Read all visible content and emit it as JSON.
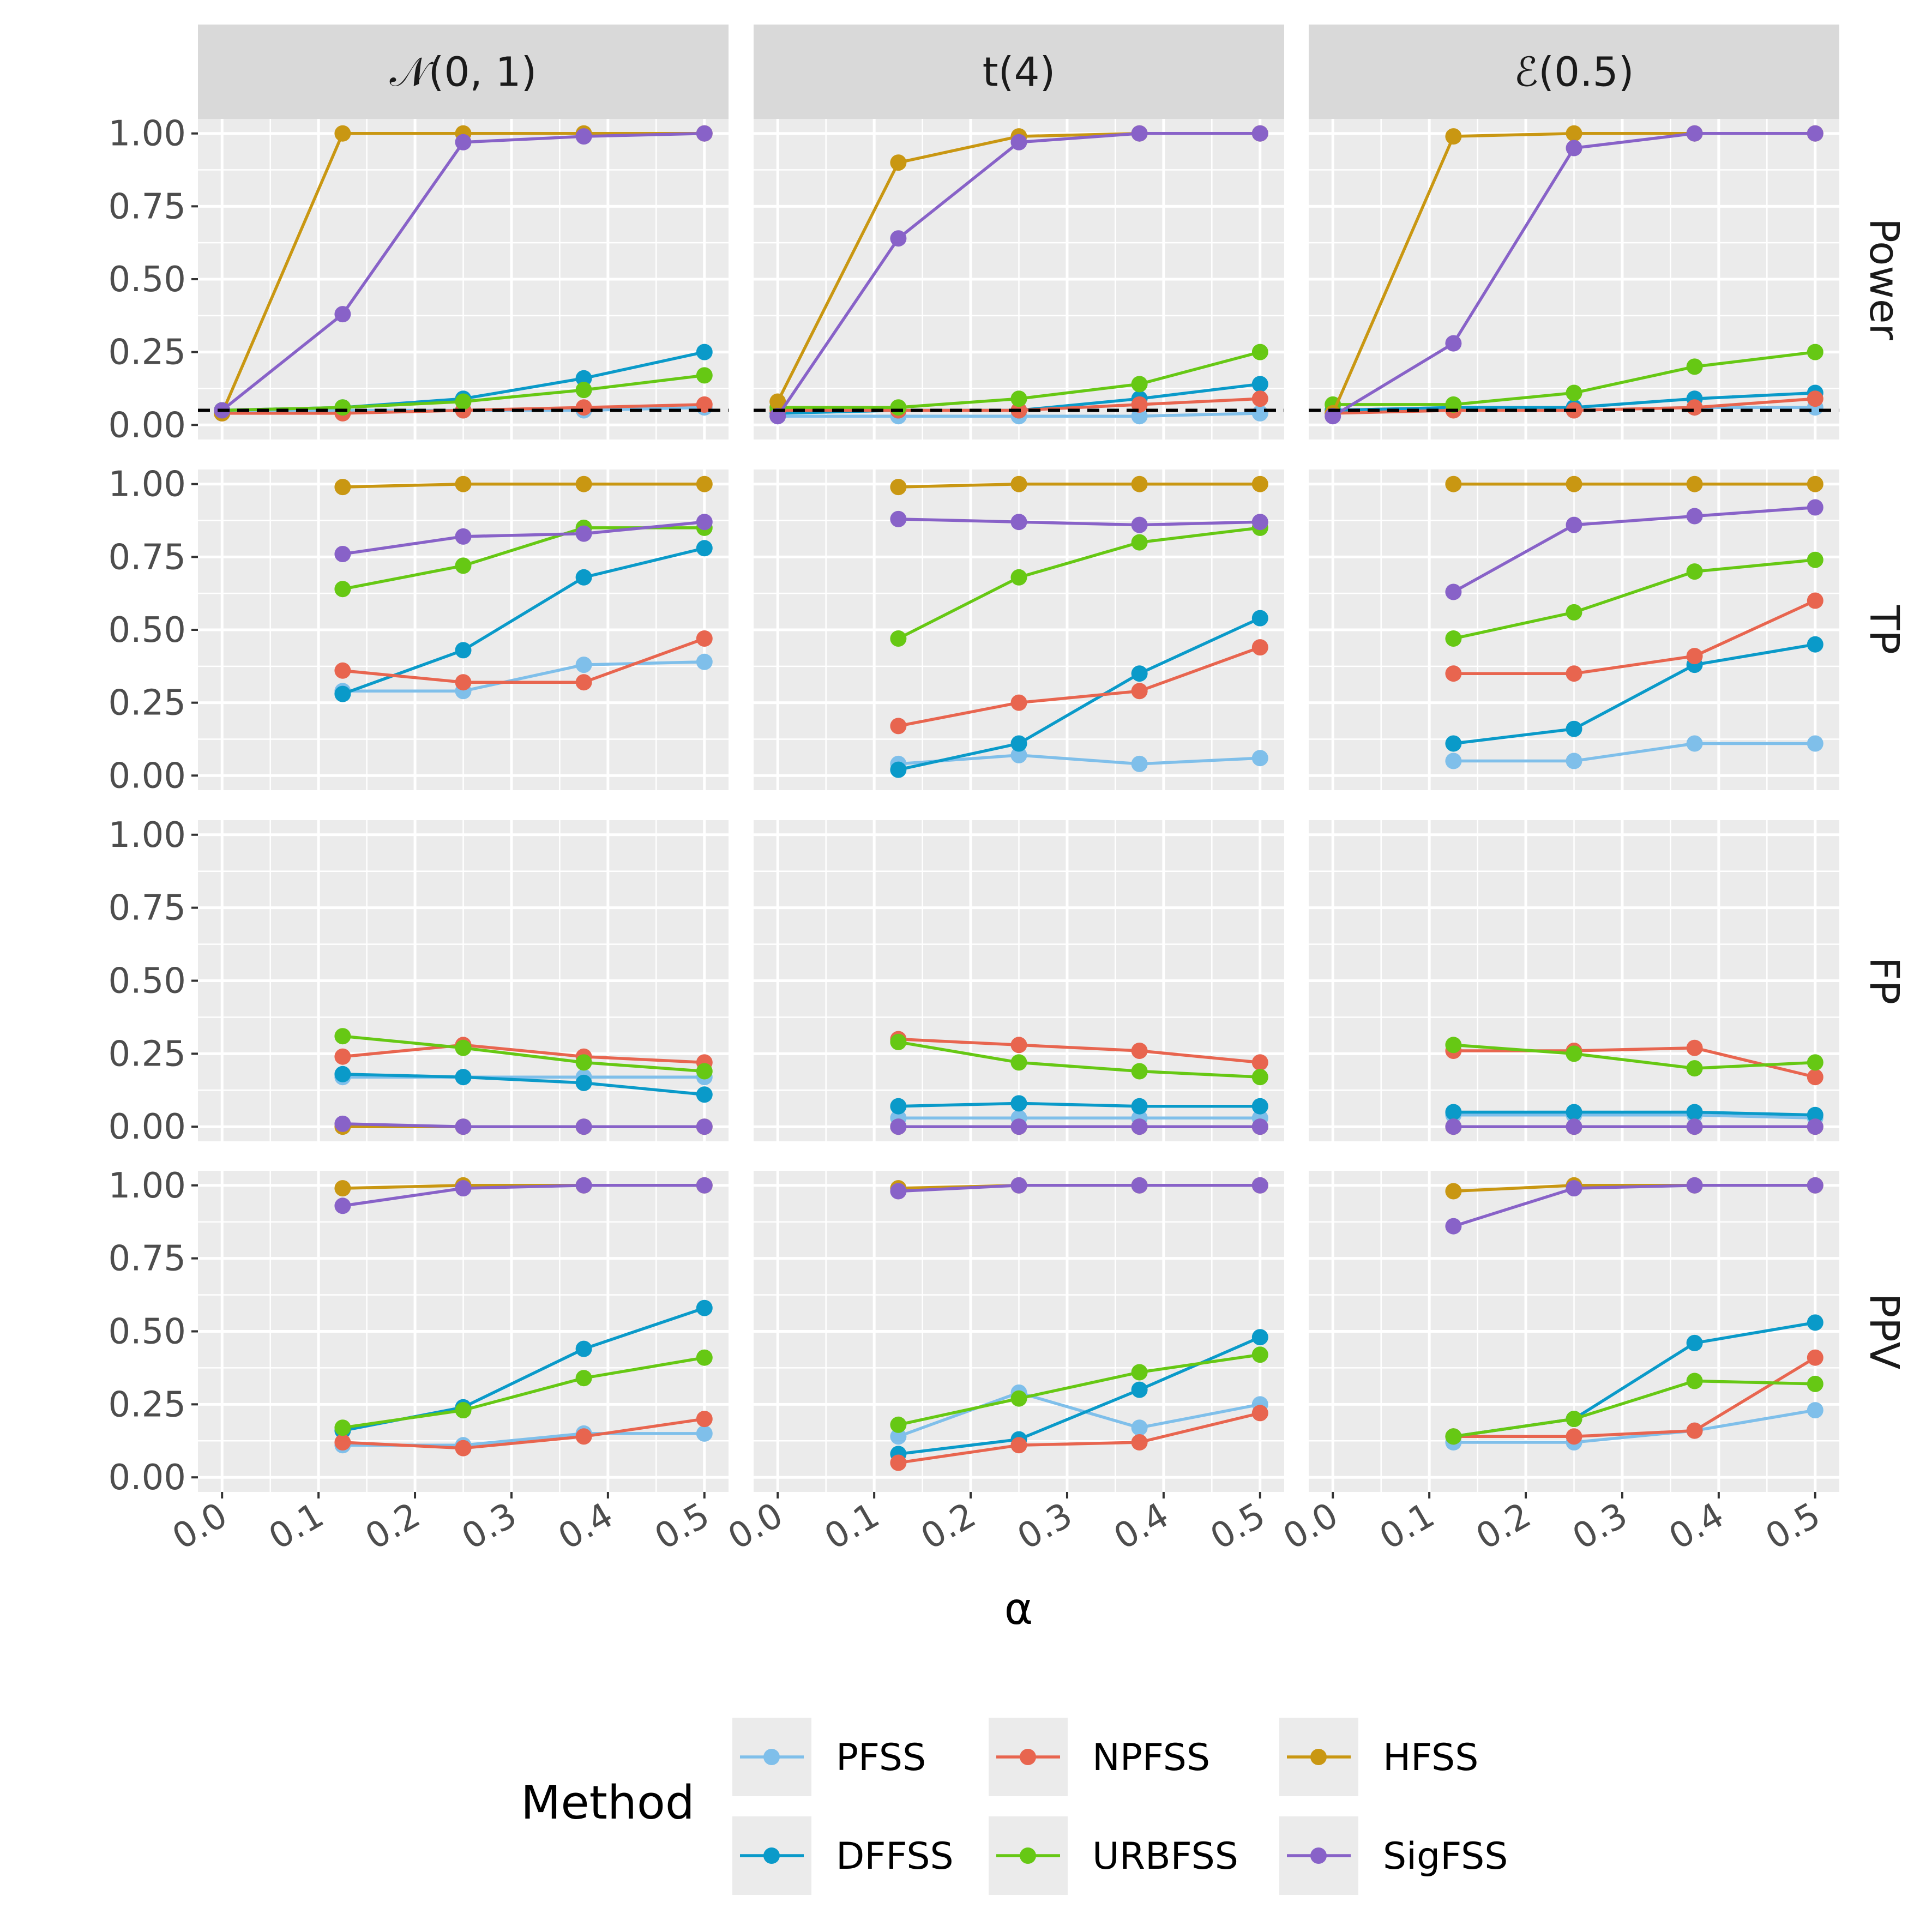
{
  "chart_data": {
    "type": "line",
    "facet_columns": [
      "𝒩(0, 1)",
      "t(4)",
      "ℰ(0.5)"
    ],
    "facet_rows": [
      "Power",
      "TP",
      "FP",
      "PPV"
    ],
    "xlabel": "α",
    "x_ticks": [
      "0.0",
      "0.1",
      "0.2",
      "0.3",
      "0.4",
      "0.5"
    ],
    "y_ticks": [
      "0.00",
      "0.25",
      "0.50",
      "0.75",
      "1.00"
    ],
    "xlim": [
      -0.025,
      0.525
    ],
    "ylim": [
      -0.05,
      1.05
    ],
    "x": [
      0,
      0.125,
      0.25,
      0.375,
      0.5
    ],
    "reference_line": {
      "row": "Power",
      "y": 0.05,
      "style": "dashed"
    },
    "legend": {
      "title": "Method",
      "position": "bottom",
      "items": [
        "PFSS",
        "NPFSS",
        "HFSS",
        "DFFSS",
        "URBFSS",
        "SigFSS"
      ]
    },
    "series_colors": {
      "PFSS": "#7FBFEA",
      "DFFSS": "#0A9AC9",
      "NPFSS": "#E8654F",
      "URBFSS": "#66C814",
      "HFSS": "#C99712",
      "SigFSS": "#8862C8"
    },
    "draw_order": [
      "PFSS",
      "DFFSS",
      "NPFSS",
      "URBFSS",
      "HFSS",
      "SigFSS"
    ],
    "panels": {
      "Power": [
        {
          "PFSS": [
            0.05,
            0.05,
            0.05,
            0.05,
            0.06
          ],
          "DFFSS": [
            0.05,
            0.06,
            0.09,
            0.16,
            0.25
          ],
          "NPFSS": [
            0.04,
            0.04,
            0.05,
            0.06,
            0.07
          ],
          "URBFSS": [
            0.05,
            0.06,
            0.08,
            0.12,
            0.17
          ],
          "HFSS": [
            0.04,
            1.0,
            1.0,
            1.0,
            1.0
          ],
          "SigFSS": [
            0.05,
            0.38,
            0.97,
            0.99,
            1.0
          ]
        },
        {
          "PFSS": [
            0.03,
            0.03,
            0.03,
            0.03,
            0.04
          ],
          "DFFSS": [
            0.04,
            0.05,
            0.05,
            0.09,
            0.14
          ],
          "NPFSS": [
            0.05,
            0.05,
            0.05,
            0.07,
            0.09
          ],
          "URBFSS": [
            0.06,
            0.06,
            0.09,
            0.14,
            0.25
          ],
          "HFSS": [
            0.08,
            0.9,
            0.99,
            1.0,
            1.0
          ],
          "SigFSS": [
            0.03,
            0.64,
            0.97,
            1.0,
            1.0
          ]
        },
        {
          "PFSS": [
            0.05,
            0.06,
            0.05,
            0.06,
            0.06
          ],
          "DFFSS": [
            0.05,
            0.06,
            0.06,
            0.09,
            0.11
          ],
          "NPFSS": [
            0.04,
            0.05,
            0.05,
            0.06,
            0.09
          ],
          "URBFSS": [
            0.07,
            0.07,
            0.11,
            0.2,
            0.25
          ],
          "HFSS": [
            0.04,
            0.99,
            1.0,
            1.0,
            1.0
          ],
          "SigFSS": [
            0.03,
            0.28,
            0.95,
            1.0,
            1.0
          ]
        }
      ],
      "TP": [
        {
          "PFSS": [
            null,
            0.29,
            0.29,
            0.38,
            0.39
          ],
          "DFFSS": [
            null,
            0.28,
            0.43,
            0.68,
            0.78
          ],
          "NPFSS": [
            null,
            0.36,
            0.32,
            0.32,
            0.47
          ],
          "URBFSS": [
            null,
            0.64,
            0.72,
            0.85,
            0.85
          ],
          "HFSS": [
            null,
            0.99,
            1.0,
            1.0,
            1.0
          ],
          "SigFSS": [
            null,
            0.76,
            0.82,
            0.83,
            0.87
          ]
        },
        {
          "PFSS": [
            null,
            0.04,
            0.07,
            0.04,
            0.06
          ],
          "DFFSS": [
            null,
            0.02,
            0.11,
            0.35,
            0.54
          ],
          "NPFSS": [
            null,
            0.17,
            0.25,
            0.29,
            0.44
          ],
          "URBFSS": [
            null,
            0.47,
            0.68,
            0.8,
            0.85
          ],
          "HFSS": [
            null,
            0.99,
            1.0,
            1.0,
            1.0
          ],
          "SigFSS": [
            null,
            0.88,
            0.87,
            0.86,
            0.87
          ]
        },
        {
          "PFSS": [
            null,
            0.05,
            0.05,
            0.11,
            0.11
          ],
          "DFFSS": [
            null,
            0.11,
            0.16,
            0.38,
            0.45
          ],
          "NPFSS": [
            null,
            0.35,
            0.35,
            0.41,
            0.6
          ],
          "URBFSS": [
            null,
            0.47,
            0.56,
            0.7,
            0.74
          ],
          "HFSS": [
            null,
            1.0,
            1.0,
            1.0,
            1.0
          ],
          "SigFSS": [
            null,
            0.63,
            0.86,
            0.89,
            0.92
          ]
        }
      ],
      "FP": [
        {
          "PFSS": [
            null,
            0.17,
            0.17,
            0.17,
            0.17
          ],
          "DFFSS": [
            null,
            0.18,
            0.17,
            0.15,
            0.11
          ],
          "NPFSS": [
            null,
            0.24,
            0.28,
            0.24,
            0.22
          ],
          "URBFSS": [
            null,
            0.31,
            0.27,
            0.22,
            0.19
          ],
          "HFSS": [
            null,
            0.0,
            0.0,
            0.0,
            0.0
          ],
          "SigFSS": [
            null,
            0.01,
            0.0,
            0.0,
            0.0
          ]
        },
        {
          "PFSS": [
            null,
            0.03,
            0.03,
            0.03,
            0.03
          ],
          "DFFSS": [
            null,
            0.07,
            0.08,
            0.07,
            0.07
          ],
          "NPFSS": [
            null,
            0.3,
            0.28,
            0.26,
            0.22
          ],
          "URBFSS": [
            null,
            0.29,
            0.22,
            0.19,
            0.17
          ],
          "HFSS": [
            null,
            0.0,
            0.0,
            0.0,
            0.0
          ],
          "SigFSS": [
            null,
            0.0,
            0.0,
            0.0,
            0.0
          ]
        },
        {
          "PFSS": [
            null,
            0.04,
            0.04,
            0.04,
            0.03
          ],
          "DFFSS": [
            null,
            0.05,
            0.05,
            0.05,
            0.04
          ],
          "NPFSS": [
            null,
            0.26,
            0.26,
            0.27,
            0.17
          ],
          "URBFSS": [
            null,
            0.28,
            0.25,
            0.2,
            0.22
          ],
          "HFSS": [
            null,
            0.0,
            0.0,
            0.0,
            0.0
          ],
          "SigFSS": [
            null,
            0.0,
            0.0,
            0.0,
            0.0
          ]
        }
      ],
      "PPV": [
        {
          "PFSS": [
            null,
            0.11,
            0.11,
            0.15,
            0.15
          ],
          "DFFSS": [
            null,
            0.16,
            0.24,
            0.44,
            0.58
          ],
          "NPFSS": [
            null,
            0.12,
            0.1,
            0.14,
            0.2
          ],
          "URBFSS": [
            null,
            0.17,
            0.23,
            0.34,
            0.41
          ],
          "HFSS": [
            null,
            0.99,
            1.0,
            1.0,
            1.0
          ],
          "SigFSS": [
            null,
            0.93,
            0.99,
            1.0,
            1.0
          ]
        },
        {
          "PFSS": [
            null,
            0.14,
            0.29,
            0.17,
            0.25
          ],
          "DFFSS": [
            null,
            0.08,
            0.13,
            0.3,
            0.48
          ],
          "NPFSS": [
            null,
            0.05,
            0.11,
            0.12,
            0.22
          ],
          "URBFSS": [
            null,
            0.18,
            0.27,
            0.36,
            0.42
          ],
          "HFSS": [
            null,
            0.99,
            1.0,
            1.0,
            1.0
          ],
          "SigFSS": [
            null,
            0.98,
            1.0,
            1.0,
            1.0
          ]
        },
        {
          "PFSS": [
            null,
            0.12,
            0.12,
            0.16,
            0.23
          ],
          "DFFSS": [
            null,
            0.14,
            0.2,
            0.46,
            0.53
          ],
          "NPFSS": [
            null,
            0.14,
            0.14,
            0.16,
            0.41
          ],
          "URBFSS": [
            null,
            0.14,
            0.2,
            0.33,
            0.32
          ],
          "HFSS": [
            null,
            0.98,
            1.0,
            1.0,
            1.0
          ],
          "SigFSS": [
            null,
            0.86,
            0.99,
            1.0,
            1.0
          ]
        }
      ]
    }
  }
}
